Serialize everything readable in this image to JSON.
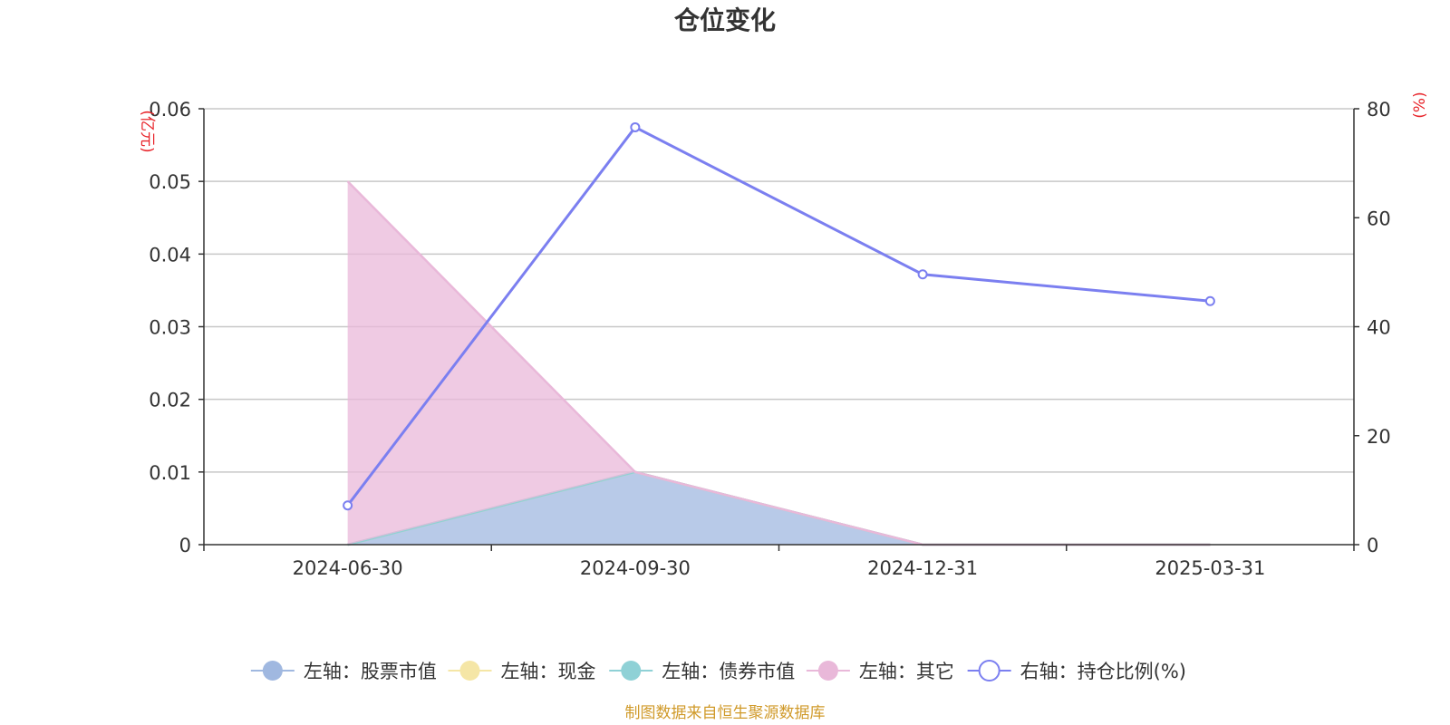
{
  "chart_data": {
    "type": "line",
    "title": "仓位变化",
    "categories": [
      "2024-06-30",
      "2024-09-30",
      "2024-12-31",
      "2025-03-31"
    ],
    "left_axis": {
      "unit": "(亿元)",
      "ylim": [
        0,
        0.06
      ],
      "ticks": [
        "0",
        "0.01",
        "0.02",
        "0.03",
        "0.04",
        "0.05",
        "0.06"
      ]
    },
    "right_axis": {
      "unit": "(%)",
      "ylim": [
        0,
        80
      ],
      "ticks": [
        "0",
        "20",
        "40",
        "60",
        "80"
      ]
    },
    "grid": true,
    "legend_position": "bottom",
    "stacked_areas": true,
    "series": [
      {
        "name": "左轴：股票市值",
        "axis": "left",
        "kind": "area",
        "color": "#a0b8e0",
        "values": [
          0,
          0.01,
          0,
          0
        ]
      },
      {
        "name": "左轴：现金",
        "axis": "left",
        "kind": "area",
        "color": "#f5e6a6",
        "values": [
          0,
          0,
          0,
          0
        ]
      },
      {
        "name": "左轴：债券市值",
        "axis": "left",
        "kind": "area",
        "color": "#8fd1d6",
        "values": [
          0,
          0,
          0,
          0
        ]
      },
      {
        "name": "左轴：其它",
        "axis": "left",
        "kind": "area",
        "color": "#e9b8d9",
        "values": [
          0.05,
          0,
          0,
          0
        ]
      },
      {
        "name": "右轴：持仓比例(%)",
        "axis": "right",
        "kind": "line",
        "color": "#7b7ff0",
        "values": [
          7.2,
          76.6,
          49.6,
          44.7
        ]
      }
    ]
  },
  "footer": "制图数据来自恒生聚源数据库"
}
